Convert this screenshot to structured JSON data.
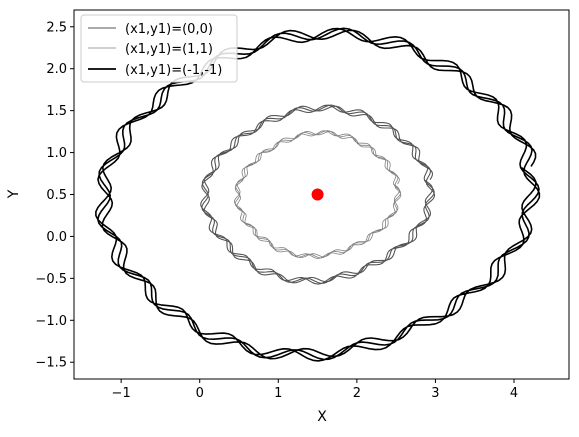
{
  "chart_data": {
    "type": "line",
    "title": "",
    "xlabel": "X",
    "ylabel": "Y",
    "xlim": [
      -1.6,
      4.7
    ],
    "ylim": [
      -1.7,
      2.7
    ],
    "x_ticks": [
      -1,
      0,
      1,
      2,
      3,
      4
    ],
    "x_tick_labels": [
      "−1",
      "0",
      "1",
      "2",
      "3",
      "4"
    ],
    "y_ticks": [
      -1.5,
      -1.0,
      -0.5,
      0.0,
      0.5,
      1.0,
      1.5,
      2.0,
      2.5
    ],
    "y_tick_labels": [
      "−1.5",
      "−1.0",
      "−0.5",
      "0.0",
      "0.5",
      "1.0",
      "1.5",
      "2.0",
      "2.5"
    ],
    "grid": false,
    "legend_position": "upper-left",
    "series": [
      {
        "name": "(x1,y1)=(0,0)",
        "color": "#555555",
        "shape": "wobbly-ellipse",
        "center": [
          1.5,
          0.5
        ],
        "x_extent": [
          0.0,
          2.95
        ],
        "y_extent": [
          -0.55,
          1.55
        ],
        "tilt_deg": 18,
        "loops": 3
      },
      {
        "name": "(x1,y1)=(1,1)",
        "color": "#808080",
        "shape": "wobbly-ellipse",
        "center": [
          1.5,
          0.5
        ],
        "x_extent": [
          0.45,
          2.55
        ],
        "y_extent": [
          -0.25,
          1.25
        ],
        "tilt_deg": 18,
        "loops": 3
      },
      {
        "name": "(x1,y1)=(-1,-1)",
        "color": "#000000",
        "shape": "wobbly-ellipse",
        "center": [
          1.5,
          0.5
        ],
        "x_extent": [
          -1.3,
          4.3
        ],
        "y_extent": [
          -1.45,
          2.45
        ],
        "tilt_deg": 18,
        "loops": 3
      }
    ],
    "point": {
      "x": 1.5,
      "y": 0.5,
      "color": "#ff0000"
    }
  }
}
